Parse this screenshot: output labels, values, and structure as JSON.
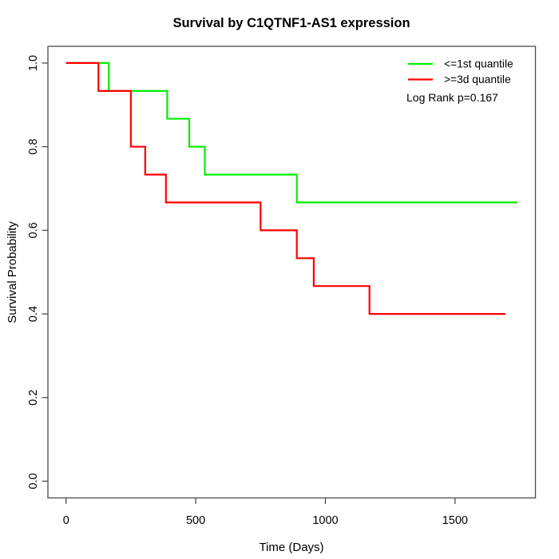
{
  "chart_data": {
    "type": "line",
    "subtype": "kaplan-meier-step",
    "title": "Survival by C1QTNF1-AS1 expression",
    "xlabel": "Time (Days)",
    "ylabel": "Survival Probability",
    "xlim": [
      -70,
      1810
    ],
    "ylim": [
      -0.04,
      1.04
    ],
    "xtick_values": [
      0,
      500,
      1000,
      1500
    ],
    "xtick_labels": [
      "0",
      "500",
      "1000",
      "1500"
    ],
    "ytick_values": [
      0.0,
      0.2,
      0.4,
      0.6,
      0.8,
      1.0
    ],
    "ytick_labels": [
      "0.0",
      "0.2",
      "0.4",
      "0.6",
      "0.8",
      "1.0"
    ],
    "grid": false,
    "legend_position": "top-right",
    "annotation": "Log Rank p=0.167",
    "series": [
      {
        "name": "<=1st quantile",
        "color": "#00f000",
        "steps": [
          [
            0,
            1.0
          ],
          [
            165,
            0.9333
          ],
          [
            390,
            0.8667
          ],
          [
            475,
            0.8
          ],
          [
            535,
            0.7333
          ],
          [
            890,
            0.6667
          ]
        ],
        "end_time": 1740
      },
      {
        "name": ">=3d quantile",
        "color": "#ff0000",
        "steps": [
          [
            0,
            1.0
          ],
          [
            125,
            0.9333
          ],
          [
            250,
            0.8
          ],
          [
            305,
            0.7333
          ],
          [
            385,
            0.6667
          ],
          [
            750,
            0.6
          ],
          [
            890,
            0.5333
          ],
          [
            955,
            0.4667
          ],
          [
            1170,
            0.4
          ]
        ],
        "end_time": 1695
      }
    ]
  }
}
